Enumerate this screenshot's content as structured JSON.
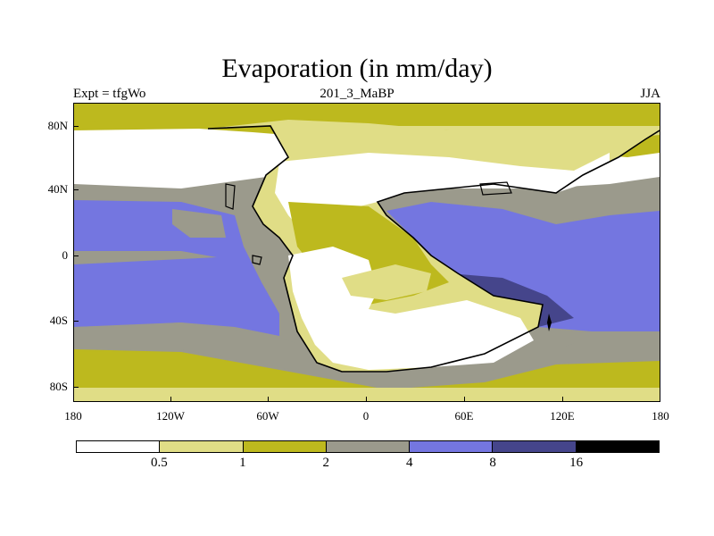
{
  "title": "Evaporation (in mm/day)",
  "subtitle_left": "Expt = tfgWo",
  "subtitle_center": "201_3_MaBP",
  "subtitle_right": "JJA",
  "y_ticks": [
    "80N",
    "40N",
    "0",
    "40S",
    "80S"
  ],
  "x_ticks": [
    "180",
    "120W",
    "60W",
    "0",
    "60E",
    "120E",
    "180"
  ],
  "colorbar": {
    "labels": [
      "0.5",
      "1",
      "2",
      "4",
      "8",
      "16"
    ],
    "colors": [
      "#ffffff",
      "#e0dd86",
      "#bdb91e",
      "#9b9a8c",
      "#7476e0",
      "#45458b",
      "#000000"
    ]
  },
  "palette": {
    "white": "#ffffff",
    "pale_yellow": "#e0dd86",
    "olive": "#bdb91e",
    "gray": "#9b9a8c",
    "blue": "#7476e0",
    "navy": "#45458b",
    "coast": "#000000"
  }
}
